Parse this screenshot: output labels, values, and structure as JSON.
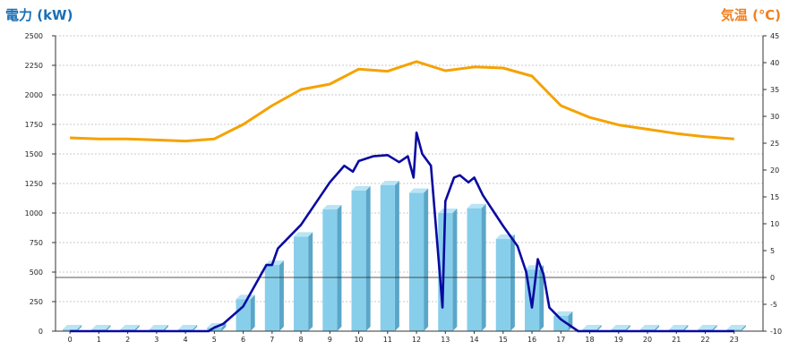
{
  "chart_data": {
    "type": "bar+line",
    "left_axis_label": "電力 (kW)",
    "right_axis_label": "気温 (℃)",
    "colors": {
      "left_label": "#1a6fb5",
      "right_label": "#f08020",
      "bar_front": "#87ceeb",
      "bar_side": "#5aa6c8",
      "bar_top": "#b9e4f5",
      "power_line": "#0a0aa0",
      "temp_line": "#f5a200"
    },
    "ylim_left": [
      0,
      2500
    ],
    "ylim_right": [
      -10,
      45
    ],
    "left_ticks": [
      0,
      250,
      500,
      750,
      1000,
      1250,
      1500,
      1750,
      2000,
      2250,
      2500
    ],
    "right_ticks": [
      -10,
      -5,
      0,
      5,
      10,
      15,
      20,
      25,
      30,
      35,
      40,
      45
    ],
    "categories": [
      "0",
      "1",
      "2",
      "3",
      "4",
      "5",
      "6",
      "7",
      "8",
      "9",
      "10",
      "11",
      "12",
      "13",
      "14",
      "15",
      "16",
      "17",
      "18",
      "19",
      "20",
      "21",
      "22",
      "23"
    ],
    "bars": [
      15,
      15,
      15,
      15,
      15,
      30,
      270,
      560,
      800,
      1030,
      1190,
      1235,
      1170,
      1000,
      1040,
      780,
      520,
      130,
      15,
      15,
      15,
      15,
      15,
      15
    ],
    "power_line": [
      [
        0,
        0
      ],
      [
        1,
        0
      ],
      [
        2,
        0
      ],
      [
        3,
        0
      ],
      [
        4,
        0
      ],
      [
        4.8,
        0
      ],
      [
        5,
        30
      ],
      [
        5.3,
        60
      ],
      [
        6,
        210
      ],
      [
        6.8,
        560
      ],
      [
        7,
        560
      ],
      [
        7.2,
        700
      ],
      [
        8,
        900
      ],
      [
        9,
        1260
      ],
      [
        9.5,
        1400
      ],
      [
        9.8,
        1350
      ],
      [
        10,
        1440
      ],
      [
        10.5,
        1480
      ],
      [
        11,
        1490
      ],
      [
        11.4,
        1430
      ],
      [
        11.7,
        1480
      ],
      [
        11.9,
        1300
      ],
      [
        12,
        1680
      ],
      [
        12.2,
        1500
      ],
      [
        12.5,
        1400
      ],
      [
        12.8,
        500
      ],
      [
        12.9,
        200
      ],
      [
        13,
        1100
      ],
      [
        13.3,
        1300
      ],
      [
        13.5,
        1320
      ],
      [
        13.8,
        1260
      ],
      [
        14,
        1300
      ],
      [
        14.3,
        1150
      ],
      [
        15,
        890
      ],
      [
        15.5,
        720
      ],
      [
        15.8,
        500
      ],
      [
        16,
        200
      ],
      [
        16.2,
        610
      ],
      [
        16.4,
        480
      ],
      [
        16.6,
        200
      ],
      [
        17,
        100
      ],
      [
        17.6,
        0
      ],
      [
        23,
        0
      ]
    ],
    "temp_line": [
      26,
      25.8,
      25.8,
      25.6,
      25.4,
      25.8,
      28.5,
      32,
      35,
      36,
      38.8,
      38.4,
      40.2,
      38.5,
      39.2,
      39,
      37.5,
      32,
      29.8,
      28.4,
      27.6,
      26.8,
      26.2,
      25.8
    ],
    "zero_temp_line": 0
  }
}
